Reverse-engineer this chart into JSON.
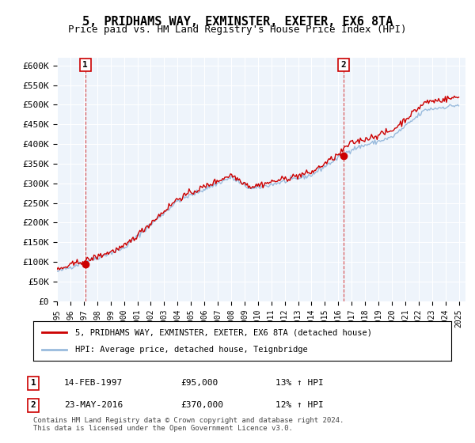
{
  "title": "5, PRIDHAMS WAY, EXMINSTER, EXETER, EX6 8TA",
  "subtitle": "Price paid vs. HM Land Registry's House Price Index (HPI)",
  "ylabel_ticks": [
    "£0",
    "£50K",
    "£100K",
    "£150K",
    "£200K",
    "£250K",
    "£300K",
    "£350K",
    "£400K",
    "£450K",
    "£500K",
    "£550K",
    "£600K"
  ],
  "ytick_values": [
    0,
    50000,
    100000,
    150000,
    200000,
    250000,
    300000,
    350000,
    400000,
    450000,
    500000,
    550000,
    600000
  ],
  "xlim": [
    1995.0,
    2025.5
  ],
  "ylim": [
    0,
    620000
  ],
  "line1_color": "#cc0000",
  "line2_color": "#99bbdd",
  "marker_color": "#cc0000",
  "dashed_color": "#cc0000",
  "legend_line1": "5, PRIDHAMS WAY, EXMINSTER, EXETER, EX6 8TA (detached house)",
  "legend_line2": "HPI: Average price, detached house, Teignbridge",
  "sale1_year": 1997.12,
  "sale1_price": 95000,
  "sale1_label": "1",
  "sale2_year": 2016.39,
  "sale2_price": 370000,
  "sale2_label": "2",
  "table_entries": [
    {
      "num": "1",
      "date": "14-FEB-1997",
      "price": "£95,000",
      "hpi": "13% ↑ HPI"
    },
    {
      "num": "2",
      "date": "23-MAY-2016",
      "price": "£370,000",
      "hpi": "12% ↑ HPI"
    }
  ],
  "footer": "Contains HM Land Registry data © Crown copyright and database right 2024.\nThis data is licensed under the Open Government Licence v3.0.",
  "background_color": "#eef4fb",
  "grid_color": "#ffffff",
  "title_fontsize": 11,
  "subtitle_fontsize": 9,
  "tick_fontsize": 8
}
